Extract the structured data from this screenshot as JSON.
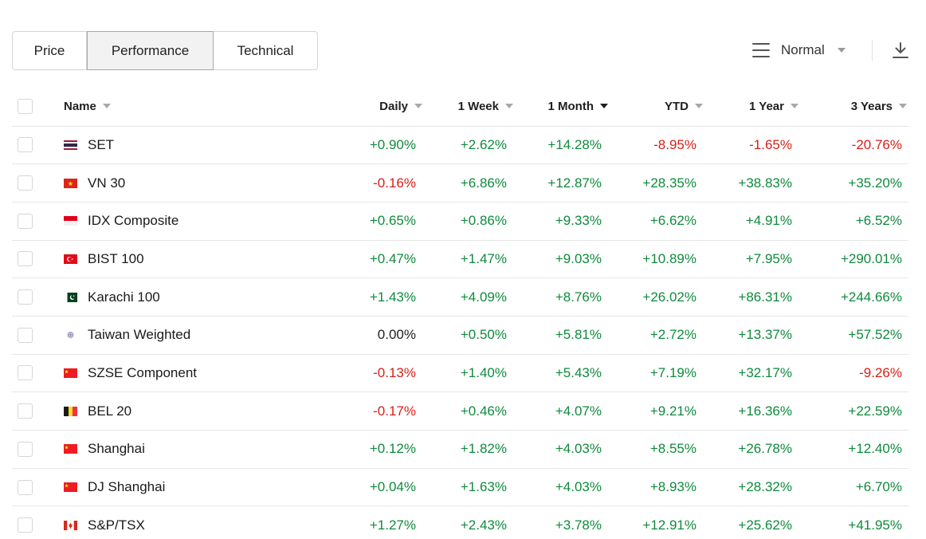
{
  "tabs": [
    "Price",
    "Performance",
    "Technical"
  ],
  "active_tab": "Performance",
  "view": {
    "label": "Normal",
    "icon": "menu-icon"
  },
  "download": {
    "icon": "download-icon"
  },
  "columns": {
    "name": "Name",
    "daily": "Daily",
    "w1": "1 Week",
    "m1": "1 Month",
    "ytd": "YTD",
    "y1": "1 Year",
    "y3": "3 Years"
  },
  "sorted_column": "1 Month",
  "colors": {
    "positive": "#0f8a3c",
    "negative": "#d91e18"
  },
  "rows": [
    {
      "name": "SET",
      "flag": "thailand-flag-icon",
      "daily": "+0.90%",
      "w1": "+2.62%",
      "m1": "+14.28%",
      "ytd": "-8.95%",
      "y1": "-1.65%",
      "y3": "-20.76%"
    },
    {
      "name": "VN 30",
      "flag": "vietnam-flag-icon",
      "daily": "-0.16%",
      "w1": "+6.86%",
      "m1": "+12.87%",
      "ytd": "+28.35%",
      "y1": "+38.83%",
      "y3": "+35.20%"
    },
    {
      "name": "IDX Composite",
      "flag": "indonesia-flag-icon",
      "daily": "+0.65%",
      "w1": "+0.86%",
      "m1": "+9.33%",
      "ytd": "+6.62%",
      "y1": "+4.91%",
      "y3": "+6.52%"
    },
    {
      "name": "BIST 100",
      "flag": "turkey-flag-icon",
      "daily": "+0.47%",
      "w1": "+1.47%",
      "m1": "+9.03%",
      "ytd": "+10.89%",
      "y1": "+7.95%",
      "y3": "+290.01%"
    },
    {
      "name": "Karachi 100",
      "flag": "pakistan-flag-icon",
      "daily": "+1.43%",
      "w1": "+4.09%",
      "m1": "+8.76%",
      "ytd": "+26.02%",
      "y1": "+86.31%",
      "y3": "+244.66%"
    },
    {
      "name": "Taiwan Weighted",
      "flag": "taiwan-flag-icon",
      "daily": "0.00%",
      "w1": "+0.50%",
      "m1": "+5.81%",
      "ytd": "+2.72%",
      "y1": "+13.37%",
      "y3": "+57.52%"
    },
    {
      "name": "SZSE Component",
      "flag": "china-flag-icon",
      "daily": "-0.13%",
      "w1": "+1.40%",
      "m1": "+5.43%",
      "ytd": "+7.19%",
      "y1": "+32.17%",
      "y3": "-9.26%"
    },
    {
      "name": "BEL 20",
      "flag": "belgium-flag-icon",
      "daily": "-0.17%",
      "w1": "+0.46%",
      "m1": "+4.07%",
      "ytd": "+9.21%",
      "y1": "+16.36%",
      "y3": "+22.59%"
    },
    {
      "name": "Shanghai",
      "flag": "china-flag-icon",
      "daily": "+0.12%",
      "w1": "+1.82%",
      "m1": "+4.03%",
      "ytd": "+8.55%",
      "y1": "+26.78%",
      "y3": "+12.40%"
    },
    {
      "name": "DJ Shanghai",
      "flag": "china-flag-icon",
      "daily": "+0.04%",
      "w1": "+1.63%",
      "m1": "+4.03%",
      "ytd": "+8.93%",
      "y1": "+28.32%",
      "y3": "+6.70%"
    },
    {
      "name": "S&P/TSX",
      "flag": "canada-flag-icon",
      "daily": "+1.27%",
      "w1": "+2.43%",
      "m1": "+3.78%",
      "ytd": "+12.91%",
      "y1": "+25.62%",
      "y3": "+41.95%"
    }
  ]
}
